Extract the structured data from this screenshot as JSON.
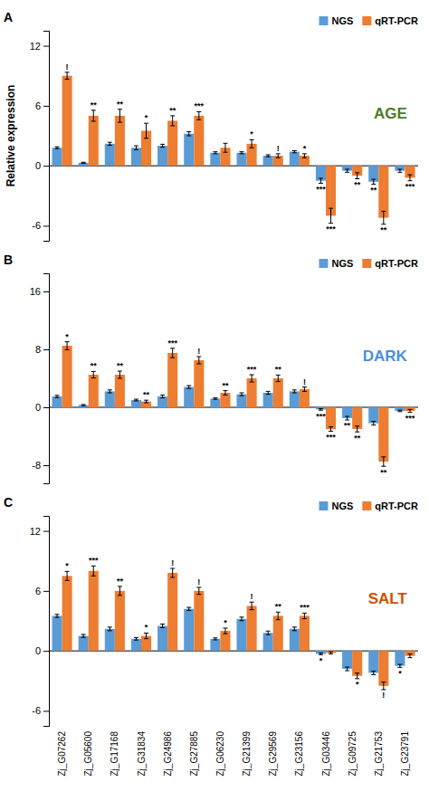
{
  "chart_data": [
    {
      "type": "bar",
      "panel_label": "A",
      "title": "AGE",
      "title_color": "#4a7c28",
      "y_label": "Relative expression",
      "categories": [
        null,
        null,
        null,
        null,
        null,
        null,
        null,
        null,
        null,
        null,
        null,
        null,
        null,
        null
      ],
      "ylim": [
        -7.5,
        13.5
      ],
      "yticks": [
        -6,
        0,
        6,
        12
      ],
      "legend": "upper right",
      "series": [
        {
          "name": "NGS",
          "color": "#5b9bd5",
          "values": [
            1.8,
            0.3,
            2.2,
            1.8,
            2.0,
            3.2,
            1.3,
            1.3,
            1.0,
            1.4,
            -1.5,
            -0.5,
            -1.6,
            -0.5
          ],
          "errors": [
            0.1,
            0.05,
            0.15,
            0.2,
            0.15,
            0.2,
            0.1,
            0.1,
            0.1,
            0.1,
            0.25,
            0.15,
            0.25,
            0.15
          ],
          "significance": [
            null,
            null,
            null,
            null,
            null,
            null,
            null,
            null,
            null,
            null,
            "***",
            null,
            "**",
            null
          ]
        },
        {
          "name": "qRT-PCR",
          "color": "#ed7d31",
          "values": [
            9.0,
            5.0,
            5.0,
            3.5,
            4.5,
            5.0,
            1.8,
            2.2,
            1.0,
            1.0,
            -5.0,
            -1.0,
            -5.2,
            -1.2
          ],
          "errors": [
            0.35,
            0.55,
            0.65,
            0.75,
            0.5,
            0.4,
            0.45,
            0.4,
            0.2,
            0.2,
            0.75,
            0.3,
            0.65,
            0.3
          ],
          "significance": [
            "!",
            "**",
            "**",
            "*",
            "**",
            "***",
            null,
            "*",
            "!",
            "*",
            "***",
            "**",
            "**",
            "***"
          ]
        }
      ]
    },
    {
      "type": "bar",
      "panel_label": "B",
      "title": "DARK",
      "title_color": "#4a90d9",
      "categories": [
        null,
        null,
        null,
        null,
        null,
        null,
        null,
        null,
        null,
        null,
        null,
        null,
        null,
        null
      ],
      "ylim": [
        -10.5,
        18.5
      ],
      "yticks": [
        -8,
        0,
        8,
        16
      ],
      "legend": "upper right",
      "series": [
        {
          "name": "NGS",
          "color": "#5b9bd5",
          "values": [
            1.5,
            0.3,
            2.2,
            1.0,
            1.5,
            2.8,
            1.2,
            1.8,
            2.0,
            2.2,
            -0.3,
            -1.5,
            -2.2,
            -0.5
          ],
          "errors": [
            0.15,
            0.08,
            0.2,
            0.12,
            0.2,
            0.2,
            0.1,
            0.2,
            0.2,
            0.2,
            0.1,
            0.25,
            0.25,
            0.1
          ],
          "significance": [
            null,
            null,
            null,
            null,
            null,
            null,
            null,
            null,
            null,
            null,
            "***",
            "**",
            null,
            null
          ]
        },
        {
          "name": "qRT-PCR",
          "color": "#ed7d31",
          "values": [
            8.5,
            4.5,
            4.5,
            0.8,
            7.5,
            6.5,
            2.0,
            4.0,
            4.0,
            2.5,
            -3.0,
            -3.0,
            -7.5,
            -0.5
          ],
          "errors": [
            0.55,
            0.45,
            0.5,
            0.18,
            0.65,
            0.5,
            0.3,
            0.5,
            0.45,
            0.3,
            0.3,
            0.4,
            0.65,
            0.2
          ],
          "significance": [
            "*",
            "**",
            "**",
            "**",
            "***",
            "!",
            "**",
            "***",
            "**",
            "!",
            "***",
            "**",
            "**",
            "***"
          ]
        }
      ]
    },
    {
      "type": "bar",
      "panel_label": "C",
      "title": "SALT",
      "title_color": "#d05000",
      "categories": [
        "Zj_G07262",
        "Zj_G05600",
        "Zj_G17168",
        "Zj_G31834",
        "Zj_G24986",
        "Zj_G27885",
        "Zj_G06230",
        "Zj_G21399",
        "Zj_G29569",
        "Zj_G23156",
        "Zj_G03446",
        "Zj_G09725",
        "Zj_G21753",
        "Zj_G23791"
      ],
      "ylim": [
        -7.5,
        13.5
      ],
      "yticks": [
        -6,
        0,
        6,
        12
      ],
      "legend": "upper right",
      "series": [
        {
          "name": "NGS",
          "color": "#5b9bd5",
          "values": [
            3.5,
            1.5,
            2.2,
            1.2,
            2.5,
            4.2,
            1.2,
            3.2,
            1.8,
            2.2,
            -0.3,
            -1.8,
            -2.2,
            -1.5
          ],
          "errors": [
            0.15,
            0.15,
            0.18,
            0.12,
            0.18,
            0.15,
            0.1,
            0.18,
            0.18,
            0.18,
            0.08,
            0.18,
            0.18,
            0.15
          ],
          "significance": [
            null,
            null,
            null,
            null,
            null,
            null,
            null,
            null,
            null,
            null,
            "*",
            null,
            null,
            "*"
          ]
        },
        {
          "name": "qRT-PCR",
          "color": "#ed7d31",
          "values": [
            7.5,
            8.0,
            6.0,
            1.5,
            7.8,
            6.0,
            2.0,
            4.5,
            3.5,
            3.5,
            -0.2,
            -2.5,
            -3.5,
            -0.5
          ],
          "errors": [
            0.45,
            0.5,
            0.45,
            0.28,
            0.45,
            0.35,
            0.28,
            0.38,
            0.38,
            0.28,
            0.1,
            0.28,
            0.38,
            0.18
          ],
          "significance": [
            "*",
            "***",
            "**",
            "*",
            "!",
            "!",
            "*",
            "!",
            "**",
            "***",
            null,
            "*",
            "!",
            null
          ]
        }
      ]
    }
  ]
}
